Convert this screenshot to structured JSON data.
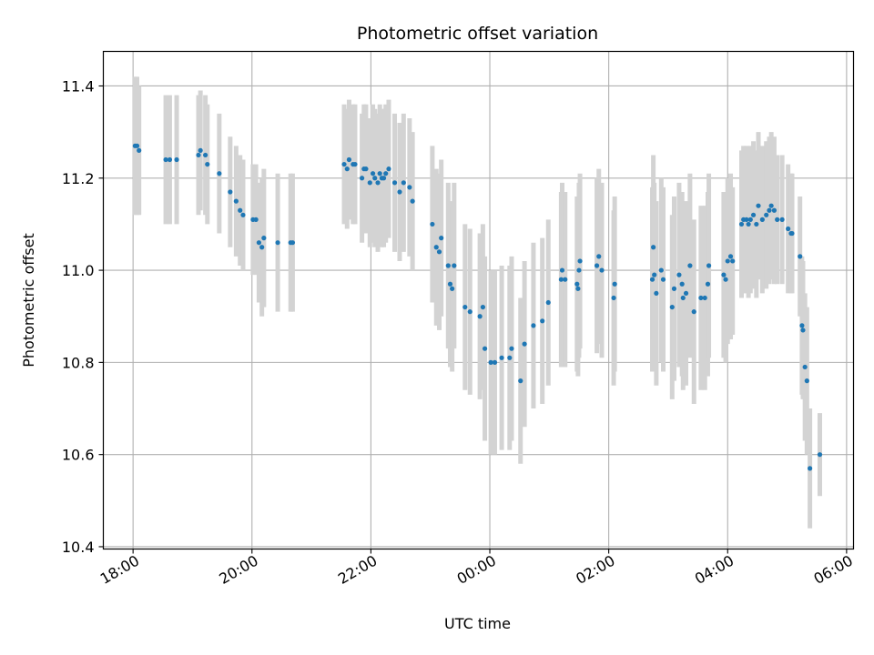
{
  "chart_data": {
    "type": "scatter",
    "title": "Photometric offset variation",
    "xlabel": "UTC time",
    "ylabel": "Photometric offset",
    "x_is_time": true,
    "xlim": [
      "17:30",
      "30:07"
    ],
    "ylim": [
      10.395,
      11.475
    ],
    "grid": true,
    "x_ticks": [
      "18:00",
      "20:00",
      "22:00",
      "00:00",
      "02:00",
      "04:00",
      "06:00"
    ],
    "y_ticks": [
      "10.4",
      "10.6",
      "10.8",
      "11.0",
      "11.2",
      "11.4"
    ],
    "colors": {
      "point": "#1f77b4",
      "errorbar": "#d3d3d3",
      "grid": "#b0b0b0"
    },
    "series": [
      {
        "x": [
          "18:02",
          "18:04",
          "18:06",
          "18:33",
          "18:37",
          "18:44",
          "19:06",
          "19:08",
          "19:13",
          "19:15",
          "19:27",
          "19:38",
          "19:44",
          "19:48",
          "19:51",
          "20:01",
          "20:04",
          "20:07",
          "20:10",
          "20:12",
          "20:26",
          "20:39",
          "20:41",
          "21:33",
          "21:36",
          "21:38",
          "21:42",
          "21:44",
          "21:51",
          "21:53",
          "21:55",
          "21:59",
          "22:02",
          "22:04",
          "22:07",
          "22:09",
          "22:11",
          "22:13",
          "22:15",
          "22:18",
          "22:24",
          "22:29",
          "22:33",
          "22:39",
          "22:42",
          "23:02",
          "23:06",
          "23:09",
          "23:11",
          "23:18",
          "23:20",
          "23:22",
          "23:24",
          "23:35",
          "23:40",
          "23:50",
          "23:53",
          "23:55",
          "24:01",
          "24:05",
          "24:12",
          "24:20",
          "24:22",
          "24:31",
          "24:35",
          "24:44",
          "24:53",
          "24:59",
          "25:12",
          "25:13",
          "25:16",
          "25:28",
          "25:29",
          "25:30",
          "25:31",
          "25:48",
          "25:50",
          "25:53",
          "26:05",
          "26:06",
          "26:44",
          "26:45",
          "26:46",
          "26:48",
          "26:53",
          "26:55",
          "27:04",
          "27:06",
          "27:11",
          "27:14",
          "27:15",
          "27:18",
          "27:22",
          "27:26",
          "27:33",
          "27:37",
          "27:40",
          "27:41",
          "27:56",
          "27:58",
          "28:00",
          "28:03",
          "28:05",
          "28:14",
          "28:16",
          "28:19",
          "28:21",
          "28:23",
          "28:26",
          "28:29",
          "28:31",
          "28:35",
          "28:39",
          "28:42",
          "28:44",
          "28:47",
          "28:50",
          "28:55",
          "29:01",
          "29:04",
          "29:05",
          "29:13",
          "29:15",
          "29:16",
          "29:18",
          "29:20",
          "29:23",
          "29:33"
        ],
        "y": [
          11.27,
          11.27,
          11.26,
          11.24,
          11.24,
          11.24,
          11.25,
          11.26,
          11.25,
          11.23,
          11.21,
          11.17,
          11.15,
          11.13,
          11.12,
          11.11,
          11.11,
          11.06,
          11.05,
          11.07,
          11.06,
          11.06,
          11.06,
          11.23,
          11.22,
          11.24,
          11.23,
          11.23,
          11.2,
          11.22,
          11.22,
          11.19,
          11.21,
          11.2,
          11.19,
          11.21,
          11.2,
          11.2,
          11.21,
          11.22,
          11.19,
          11.17,
          11.19,
          11.18,
          11.15,
          11.1,
          11.05,
          11.04,
          11.07,
          11.01,
          10.97,
          10.96,
          11.01,
          10.92,
          10.91,
          10.9,
          10.92,
          10.83,
          10.8,
          10.8,
          10.81,
          10.81,
          10.83,
          10.76,
          10.84,
          10.88,
          10.89,
          10.93,
          10.98,
          11.0,
          10.98,
          10.97,
          10.96,
          11.0,
          11.02,
          11.01,
          11.03,
          11.0,
          10.94,
          10.97,
          10.98,
          11.05,
          10.99,
          10.95,
          11.0,
          10.98,
          10.92,
          10.96,
          10.99,
          10.97,
          10.94,
          10.95,
          11.01,
          10.91,
          10.94,
          10.94,
          10.97,
          11.01,
          10.99,
          10.98,
          11.02,
          11.03,
          11.02,
          11.1,
          11.11,
          11.11,
          11.1,
          11.11,
          11.12,
          11.1,
          11.14,
          11.11,
          11.12,
          11.13,
          11.14,
          11.13,
          11.11,
          11.11,
          11.09,
          11.08,
          11.08,
          11.03,
          10.88,
          10.87,
          10.79,
          10.76,
          10.57,
          10.6
        ],
        "err": [
          0.15,
          0.15,
          0.14,
          0.14,
          0.14,
          0.14,
          0.13,
          0.13,
          0.13,
          0.13,
          0.13,
          0.12,
          0.12,
          0.12,
          0.12,
          0.12,
          0.12,
          0.13,
          0.15,
          0.15,
          0.15,
          0.15,
          0.15,
          0.13,
          0.13,
          0.13,
          0.13,
          0.13,
          0.14,
          0.14,
          0.14,
          0.14,
          0.15,
          0.15,
          0.15,
          0.15,
          0.15,
          0.15,
          0.15,
          0.15,
          0.15,
          0.15,
          0.15,
          0.15,
          0.15,
          0.17,
          0.17,
          0.17,
          0.17,
          0.18,
          0.18,
          0.18,
          0.18,
          0.18,
          0.18,
          0.18,
          0.18,
          0.2,
          0.2,
          0.2,
          0.2,
          0.2,
          0.2,
          0.18,
          0.18,
          0.18,
          0.18,
          0.18,
          0.19,
          0.19,
          0.19,
          0.19,
          0.19,
          0.19,
          0.19,
          0.19,
          0.19,
          0.19,
          0.19,
          0.19,
          0.2,
          0.2,
          0.2,
          0.2,
          0.2,
          0.2,
          0.2,
          0.2,
          0.2,
          0.2,
          0.2,
          0.2,
          0.2,
          0.2,
          0.2,
          0.2,
          0.2,
          0.2,
          0.18,
          0.18,
          0.18,
          0.18,
          0.16,
          0.16,
          0.16,
          0.16,
          0.16,
          0.16,
          0.16,
          0.16,
          0.16,
          0.16,
          0.16,
          0.16,
          0.16,
          0.16,
          0.14,
          0.14,
          0.14,
          0.13,
          0.13,
          0.13,
          0.15,
          0.15,
          0.16,
          0.16,
          0.13,
          0.09
        ]
      }
    ]
  }
}
